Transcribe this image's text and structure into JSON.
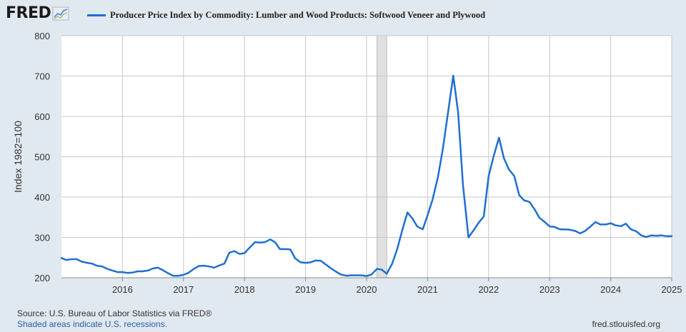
{
  "header": {
    "logo_text": "FRED",
    "legend_label": "Producer Price Index by Commodity: Lumber and Wood Products: Softwood Veneer and Plywood"
  },
  "footer": {
    "source": "Source: U.S. Bureau of Labor Statistics via FRED®",
    "recession_note": "Shaded areas indicate U.S. recessions.",
    "site": "fred.stlouisfed.org"
  },
  "colors": {
    "series": "#1f6fd0",
    "plot_background": "#ffffff",
    "page_background": "#e1e9f0",
    "grid": "#c8c8c8",
    "recession": "#e0e0e0"
  },
  "chart_data": {
    "type": "line",
    "title": "",
    "xlabel": "",
    "ylabel": "Index 1982=100",
    "ylim": [
      200,
      800
    ],
    "xlim": [
      2015.0,
      2025.0
    ],
    "yticks": [
      "200",
      "300",
      "400",
      "500",
      "600",
      "700",
      "800"
    ],
    "xticks": [
      "2016",
      "2017",
      "2018",
      "2019",
      "2020",
      "2021",
      "2022",
      "2023",
      "2024",
      "2025"
    ],
    "grid": true,
    "legend_position": "top",
    "recessions": [
      [
        2020.17,
        2020.33
      ]
    ],
    "series": [
      {
        "name": "Producer Price Index by Commodity: Lumber and Wood Products: Softwood Veneer and Plywood",
        "x": [
          2015.0,
          2015.08,
          2015.17,
          2015.25,
          2015.33,
          2015.42,
          2015.5,
          2015.58,
          2015.67,
          2015.75,
          2015.83,
          2015.92,
          2016.0,
          2016.08,
          2016.17,
          2016.25,
          2016.33,
          2016.42,
          2016.5,
          2016.58,
          2016.67,
          2016.75,
          2016.83,
          2016.92,
          2017.0,
          2017.08,
          2017.17,
          2017.25,
          2017.33,
          2017.42,
          2017.5,
          2017.58,
          2017.67,
          2017.75,
          2017.83,
          2017.92,
          2018.0,
          2018.08,
          2018.17,
          2018.25,
          2018.33,
          2018.42,
          2018.5,
          2018.58,
          2018.67,
          2018.75,
          2018.83,
          2018.92,
          2019.0,
          2019.08,
          2019.17,
          2019.25,
          2019.33,
          2019.42,
          2019.5,
          2019.58,
          2019.67,
          2019.75,
          2019.83,
          2019.92,
          2020.0,
          2020.08,
          2020.17,
          2020.25,
          2020.33,
          2020.42,
          2020.5,
          2020.58,
          2020.67,
          2020.75,
          2020.83,
          2020.92,
          2021.0,
          2021.08,
          2021.17,
          2021.25,
          2021.33,
          2021.42,
          2021.5,
          2021.58,
          2021.67,
          2021.75,
          2021.83,
          2021.92,
          2022.0,
          2022.08,
          2022.17,
          2022.25,
          2022.33,
          2022.42,
          2022.5,
          2022.58,
          2022.67,
          2022.75,
          2022.83,
          2022.92,
          2023.0,
          2023.08,
          2023.17,
          2023.25,
          2023.33,
          2023.42,
          2023.5,
          2023.58,
          2023.67,
          2023.75,
          2023.83,
          2023.92,
          2024.0,
          2024.08,
          2024.17,
          2024.25,
          2024.33,
          2024.42,
          2024.5,
          2024.58,
          2024.67,
          2024.75,
          2024.83,
          2024.92,
          2025.0
        ],
        "values": [
          249,
          244,
          246,
          246,
          240,
          237,
          235,
          230,
          228,
          222,
          218,
          214,
          214,
          212,
          213,
          216,
          216,
          218,
          223,
          225,
          218,
          211,
          205,
          205,
          207,
          212,
          222,
          229,
          230,
          228,
          225,
          230,
          235,
          262,
          266,
          259,
          261,
          274,
          288,
          287,
          288,
          295,
          288,
          271,
          271,
          270,
          248,
          238,
          237,
          238,
          243,
          242,
          233,
          223,
          215,
          208,
          205,
          206,
          206,
          206,
          204,
          208,
          222,
          220,
          210,
          235,
          270,
          315,
          362,
          347,
          327,
          320,
          355,
          393,
          450,
          520,
          605,
          701,
          610,
          430,
          300,
          317,
          335,
          352,
          452,
          500,
          547,
          497,
          469,
          452,
          405,
          392,
          388,
          370,
          349,
          338,
          327,
          326,
          320,
          320,
          319,
          316,
          310,
          316,
          327,
          338,
          332,
          332,
          335,
          330,
          328,
          334,
          320,
          315,
          305,
          301,
          305,
          304,
          305,
          303,
          303
        ]
      }
    ]
  }
}
